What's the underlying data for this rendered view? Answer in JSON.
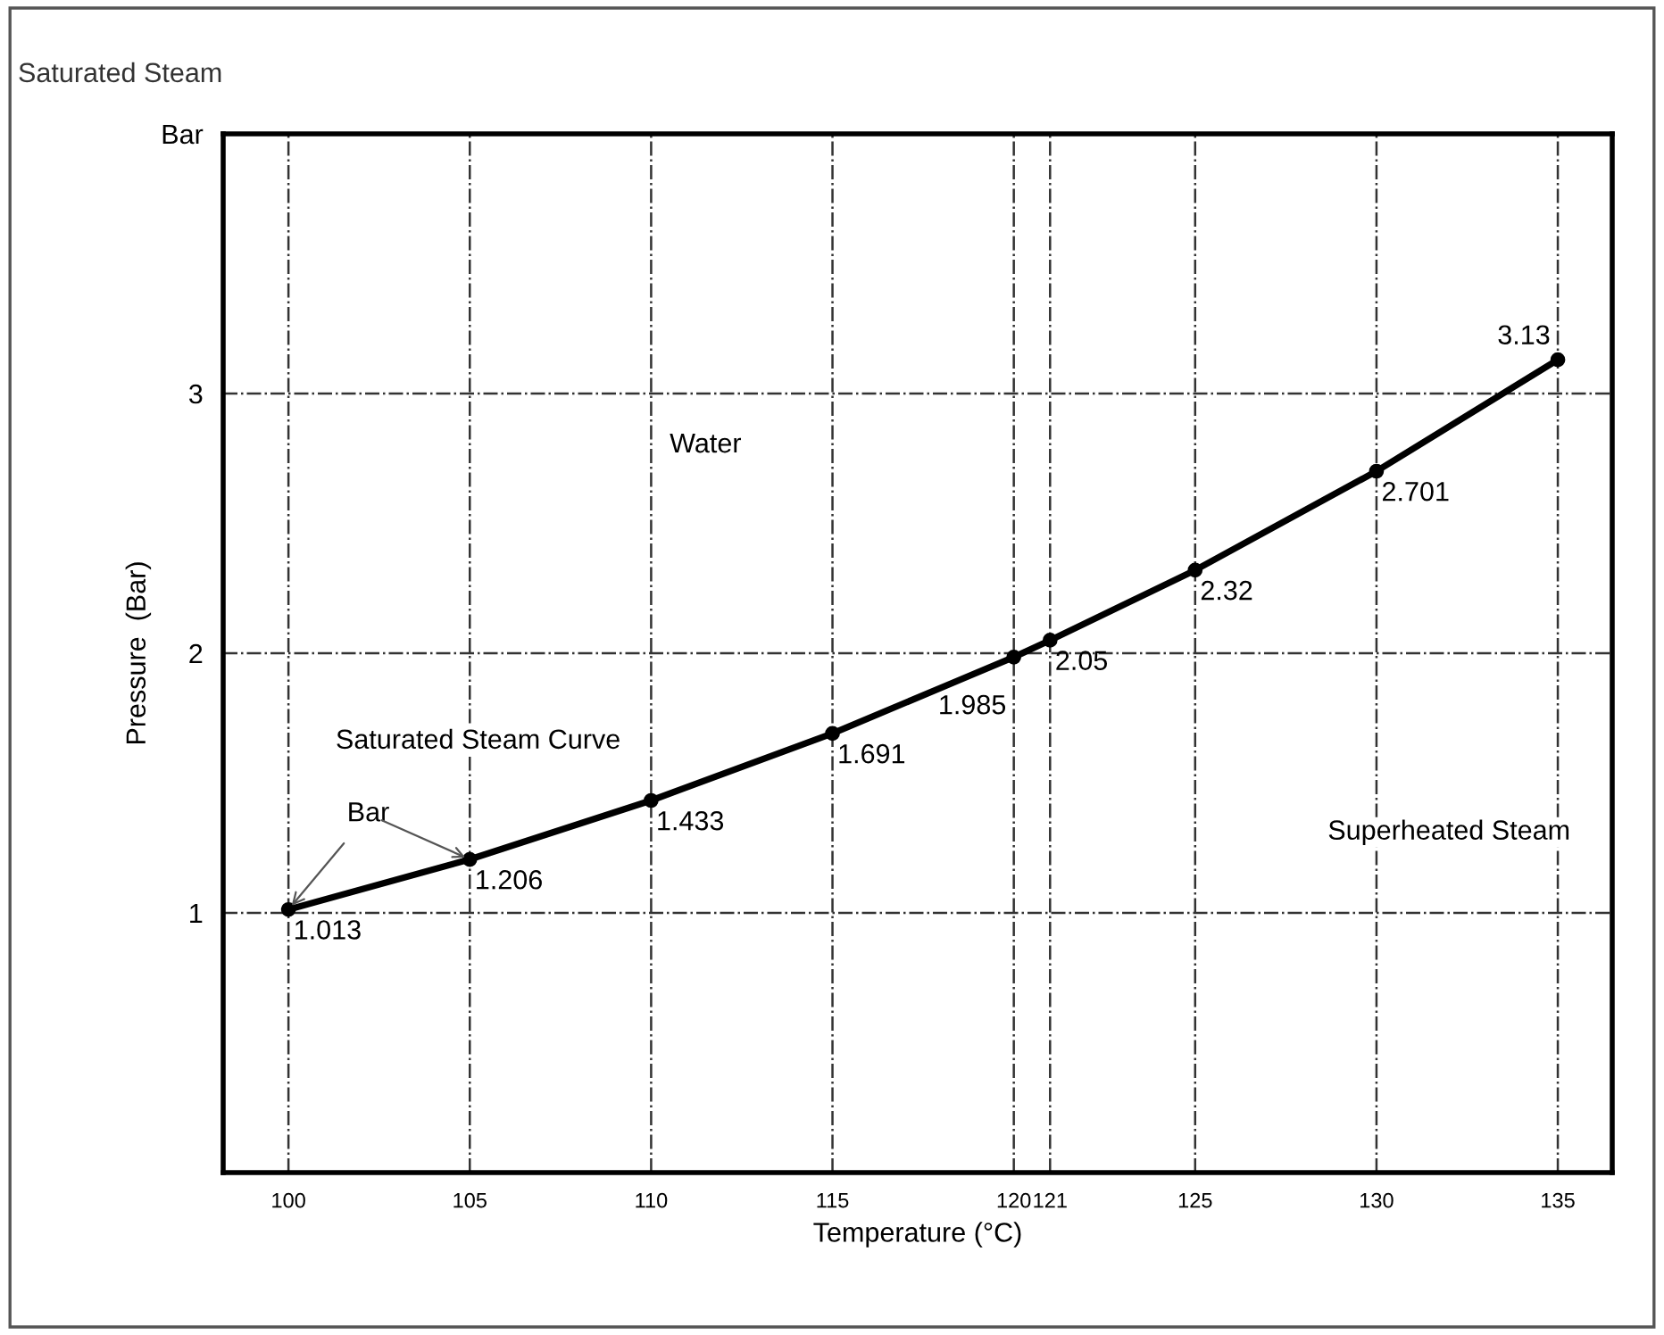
{
  "chart_data": {
    "type": "line",
    "title": "Saturated Steam",
    "xlabel": "Temperature (°C)",
    "ylabel": "Pressure  (Bar)",
    "x": [
      100,
      105,
      110,
      115,
      120,
      121,
      125,
      130,
      135
    ],
    "series": [
      {
        "color": "#000000",
        "values": [
          1.013,
          1.206,
          1.433,
          1.691,
          1.985,
          2.05,
          2.32,
          2.701,
          3.13
        ]
      }
    ],
    "xlim": [
      98.2,
      136.5
    ],
    "xticks": [
      100,
      105,
      110,
      115,
      120,
      121,
      125,
      130,
      135
    ],
    "ylim": [
      0,
      4
    ],
    "yticks": [
      1,
      2,
      3,
      {
        "value": 4,
        "label": "Bar"
      }
    ],
    "grid": true,
    "marker": "circle",
    "line_style": "solid",
    "data_labels": true,
    "annotations": [
      "Water",
      "Saturated Steam Curve",
      {
        "text": "Bar",
        "x": 100,
        "y": 1.013
      },
      "Superheated Steam"
    ]
  }
}
